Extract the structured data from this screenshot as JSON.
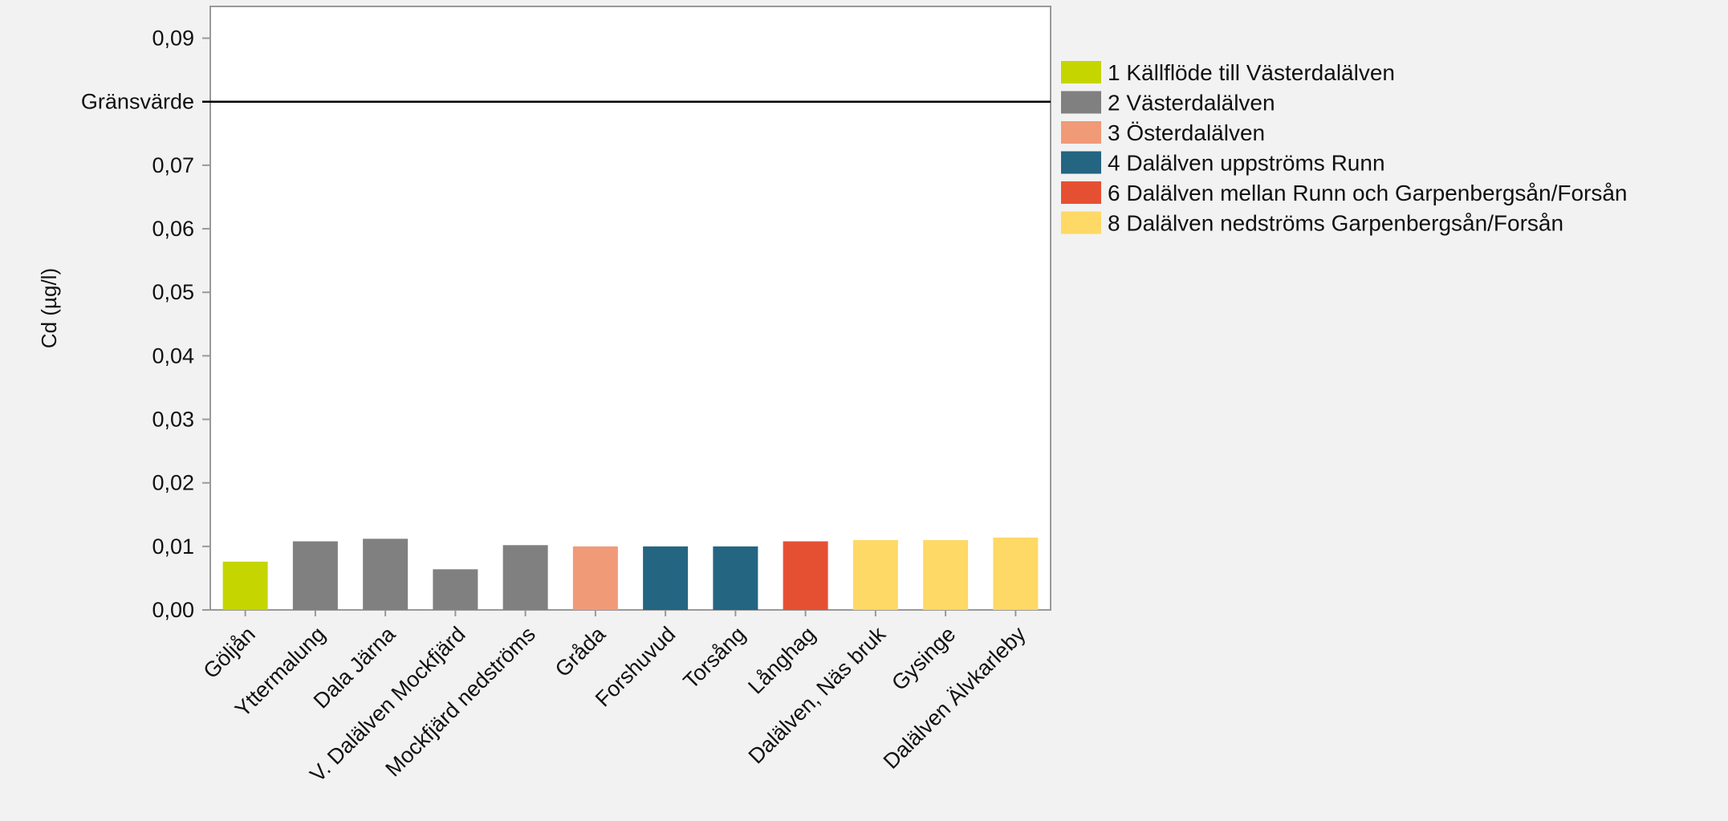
{
  "chart_data": {
    "type": "bar",
    "title": "",
    "xlabel": "",
    "ylabel": "Cd (µg/l)",
    "ylim": [
      0,
      0.095
    ],
    "yticks": [
      {
        "value": 0.0,
        "label": "0,00"
      },
      {
        "value": 0.01,
        "label": "0,01"
      },
      {
        "value": 0.02,
        "label": "0,02"
      },
      {
        "value": 0.03,
        "label": "0,03"
      },
      {
        "value": 0.04,
        "label": "0,04"
      },
      {
        "value": 0.05,
        "label": "0,05"
      },
      {
        "value": 0.06,
        "label": "0,06"
      },
      {
        "value": 0.07,
        "label": "0,07"
      },
      {
        "value": 0.09,
        "label": "0,09"
      }
    ],
    "reference_line": {
      "label": "Gränsvärde",
      "value": 0.08
    },
    "grid": false,
    "legend_position": "right",
    "categories": [
      "Göljån",
      "Yttermalung",
      "Dala Järna",
      "V. Dalälven Mockfjärd",
      "Mockfjärd nedströms",
      "Gråda",
      "Forshuvud",
      "Torsång",
      "Långhag",
      "Dalälven, Näs bruk",
      "Gysinge",
      "Dalälven Älvkarleby"
    ],
    "values": [
      0.0076,
      0.0108,
      0.0112,
      0.0064,
      0.0102,
      0.01,
      0.01,
      0.01,
      0.0108,
      0.011,
      0.011,
      0.0114
    ],
    "bar_groups": [
      0,
      1,
      1,
      1,
      1,
      2,
      3,
      3,
      4,
      5,
      5,
      5
    ],
    "legend": [
      {
        "label": "1 Källflöde till Västerdalälven",
        "color": "#c5d500"
      },
      {
        "label": "2 Västerdalälven",
        "color": "#808080"
      },
      {
        "label": "3 Österdalälven",
        "color": "#f19a78"
      },
      {
        "label": "4 Dalälven uppströms Runn",
        "color": "#246582"
      },
      {
        "label": "6 Dalälven mellan Runn och Garpenbergsån/Forsån",
        "color": "#e65032"
      },
      {
        "label": "8 Dalälven nedströms Garpenbergsån/Forsån",
        "color": "#fed966"
      }
    ]
  }
}
